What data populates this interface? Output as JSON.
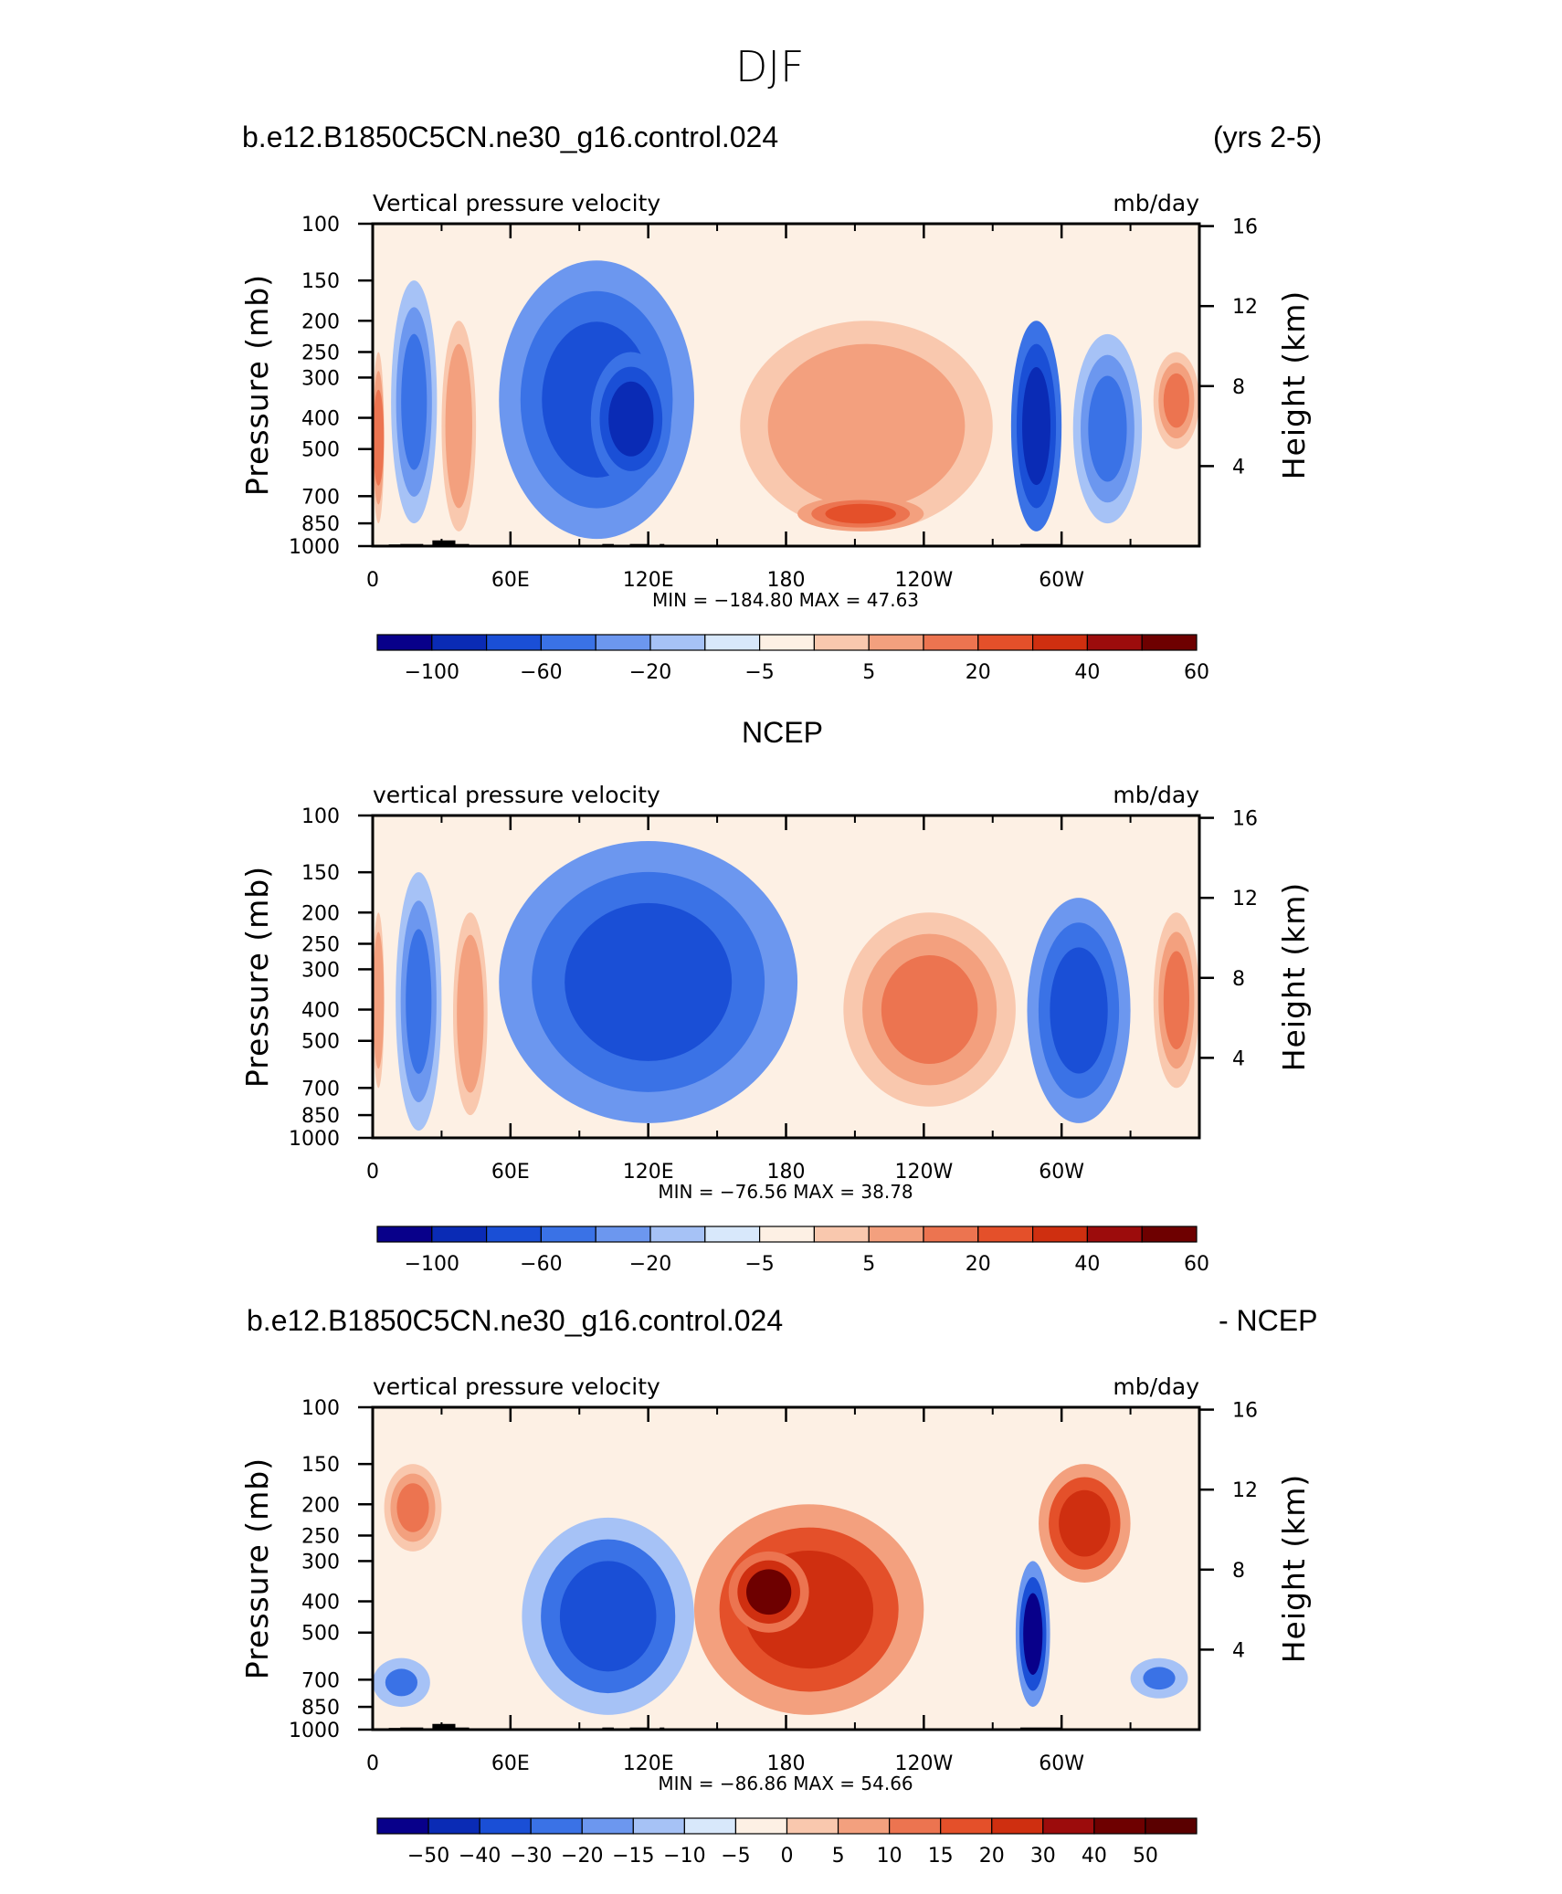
{
  "figure": {
    "title": "DJF"
  },
  "panels": [
    {
      "id": "model",
      "left_string": "b.e12.B1850C5CN.ne30_g16.control.024",
      "center_string": "",
      "right_string": "(yrs 2-5)",
      "plot_left_label": "Vertical pressure velocity",
      "plot_right_label": "mb/day",
      "min_max_text": "MIN = −184.80   MAX =   47.63",
      "colorbar_labels": [
        "−100",
        "−60",
        "−20",
        "−5",
        "5",
        "20",
        "40",
        "60"
      ]
    },
    {
      "id": "ncep",
      "left_string": "",
      "center_string": "NCEP",
      "right_string": "",
      "plot_left_label": "vertical pressure velocity",
      "plot_right_label": "mb/day",
      "min_max_text": "MIN = −76.56   MAX =   38.78",
      "colorbar_labels": [
        "−100",
        "−60",
        "−20",
        "−5",
        "5",
        "20",
        "40",
        "60"
      ]
    },
    {
      "id": "diff",
      "left_string": "b.e12.B1850C5CN.ne30_g16.control.024",
      "center_string": "",
      "right_string": "- NCEP",
      "plot_left_label": "vertical pressure velocity",
      "plot_right_label": "mb/day",
      "min_max_text": "MIN = −86.86   MAX =   54.66",
      "colorbar_labels": [
        "−50",
        "−40",
        "−30",
        "−20",
        "−15",
        "−10",
        "−5",
        "0",
        "5",
        "10",
        "15",
        "20",
        "30",
        "40",
        "50"
      ]
    }
  ],
  "axes": {
    "ylabel_left": "Pressure (mb)",
    "ylabel_right": "Height (km)",
    "pressure_ticks": [
      "100",
      "150",
      "200",
      "250",
      "300",
      "400",
      "500",
      "700",
      "850",
      "1000"
    ],
    "height_ticks": [
      "16",
      "12",
      "8",
      "4"
    ],
    "longitude_ticks": [
      "0",
      "60E",
      "120E",
      "180",
      "120W",
      "60W"
    ]
  },
  "colors": {
    "abs_scale": [
      "#08008a",
      "#0a2bb5",
      "#1a4fd6",
      "#3a72e6",
      "#6c97ef",
      "#a6c2f6",
      "#d8e8fb",
      "#fdf0e4",
      "#f9c8ae",
      "#f3a07e",
      "#ec7450",
      "#e4502a",
      "#cf2f10",
      "#9c0c0c",
      "#6e0000"
    ],
    "diff_scale": [
      "#08008a",
      "#0a2bb5",
      "#1a4fd6",
      "#3a72e6",
      "#6c97ef",
      "#a6c2f6",
      "#d8e8fb",
      "#fdf0e4",
      "#f9c8ae",
      "#f3a07e",
      "#ec7450",
      "#e4502a",
      "#cf2f10",
      "#9c0c0c",
      "#6e0000",
      "#5a0000"
    ]
  },
  "chart_data": [
    {
      "type": "heatmap",
      "title": "b.e12.B1850C5CN.ne30_g16.control.024 (yrs 2-5)",
      "variable": "Vertical pressure velocity",
      "units": "mb/day",
      "xlabel": "",
      "ylabel": "Pressure (mb)",
      "ylabel_right": "Height (km)",
      "x_range": [
        0,
        360
      ],
      "y_range_mb": [
        1000,
        100
      ],
      "y_scale": "log",
      "min": -184.8,
      "max": 47.63,
      "contour_levels": [
        -100,
        -60,
        -20,
        -5,
        5,
        20,
        40,
        60
      ],
      "regions": [
        {
          "lon": [
            0,
            5
          ],
          "p": [
            250,
            850
          ],
          "value": 20
        },
        {
          "lon": [
            8,
            28
          ],
          "p": [
            150,
            850
          ],
          "value": -20
        },
        {
          "lon": [
            30,
            45
          ],
          "p": [
            200,
            900
          ],
          "value": 15
        },
        {
          "lon": [
            55,
            140
          ],
          "p": [
            130,
            950
          ],
          "value": -40
        },
        {
          "lon": [
            95,
            130
          ],
          "p": [
            250,
            650
          ],
          "value": -60
        },
        {
          "lon": [
            160,
            270
          ],
          "p": [
            200,
            900
          ],
          "value": 15
        },
        {
          "lon": [
            185,
            240
          ],
          "p": [
            700,
            900
          ],
          "value": 30
        },
        {
          "lon": [
            278,
            300
          ],
          "p": [
            200,
            900
          ],
          "value": -60
        },
        {
          "lon": [
            305,
            335
          ],
          "p": [
            220,
            850
          ],
          "value": -20
        },
        {
          "lon": [
            340,
            360
          ],
          "p": [
            250,
            500
          ],
          "value": 20
        }
      ]
    },
    {
      "type": "heatmap",
      "title": "NCEP",
      "variable": "vertical pressure velocity",
      "units": "mb/day",
      "ylabel": "Pressure (mb)",
      "ylabel_right": "Height (km)",
      "x_range": [
        0,
        360
      ],
      "y_range_mb": [
        1000,
        100
      ],
      "y_scale": "log",
      "min": -76.56,
      "max": 38.78,
      "contour_levels": [
        -100,
        -60,
        -20,
        -5,
        5,
        20,
        40,
        60
      ],
      "regions": [
        {
          "lon": [
            0,
            5
          ],
          "p": [
            200,
            700
          ],
          "value": 15
        },
        {
          "lon": [
            10,
            30
          ],
          "p": [
            150,
            950
          ],
          "value": -20
        },
        {
          "lon": [
            35,
            50
          ],
          "p": [
            200,
            850
          ],
          "value": 15
        },
        {
          "lon": [
            55,
            185
          ],
          "p": [
            120,
            900
          ],
          "value": -40
        },
        {
          "lon": [
            205,
            280
          ],
          "p": [
            200,
            800
          ],
          "value": 20
        },
        {
          "lon": [
            285,
            330
          ],
          "p": [
            180,
            900
          ],
          "value": -40
        },
        {
          "lon": [
            340,
            360
          ],
          "p": [
            200,
            700
          ],
          "value": 20
        }
      ]
    },
    {
      "type": "heatmap",
      "title": "b.e12.B1850C5CN.ne30_g16.control.024 - NCEP",
      "variable": "vertical pressure velocity",
      "units": "mb/day",
      "ylabel": "Pressure (mb)",
      "ylabel_right": "Height (km)",
      "x_range": [
        0,
        360
      ],
      "y_range_mb": [
        1000,
        100
      ],
      "y_scale": "log",
      "min": -86.86,
      "max": 54.66,
      "contour_levels": [
        -50,
        -40,
        -30,
        -20,
        -15,
        -10,
        -5,
        0,
        5,
        10,
        15,
        20,
        30,
        40,
        50
      ],
      "regions": [
        {
          "lon": [
            5,
            30
          ],
          "p": [
            150,
            280
          ],
          "value": 15
        },
        {
          "lon": [
            0,
            25
          ],
          "p": [
            600,
            850
          ],
          "value": -20
        },
        {
          "lon": [
            65,
            140
          ],
          "p": [
            220,
            900
          ],
          "value": -30
        },
        {
          "lon": [
            140,
            240
          ],
          "p": [
            200,
            900
          ],
          "value": 30
        },
        {
          "lon": [
            155,
            190
          ],
          "p": [
            280,
            500
          ],
          "value": 50
        },
        {
          "lon": [
            280,
            295
          ],
          "p": [
            300,
            850
          ],
          "value": -50
        },
        {
          "lon": [
            290,
            330
          ],
          "p": [
            150,
            350
          ],
          "value": 30
        },
        {
          "lon": [
            330,
            355
          ],
          "p": [
            600,
            800
          ],
          "value": -20
        }
      ]
    }
  ]
}
